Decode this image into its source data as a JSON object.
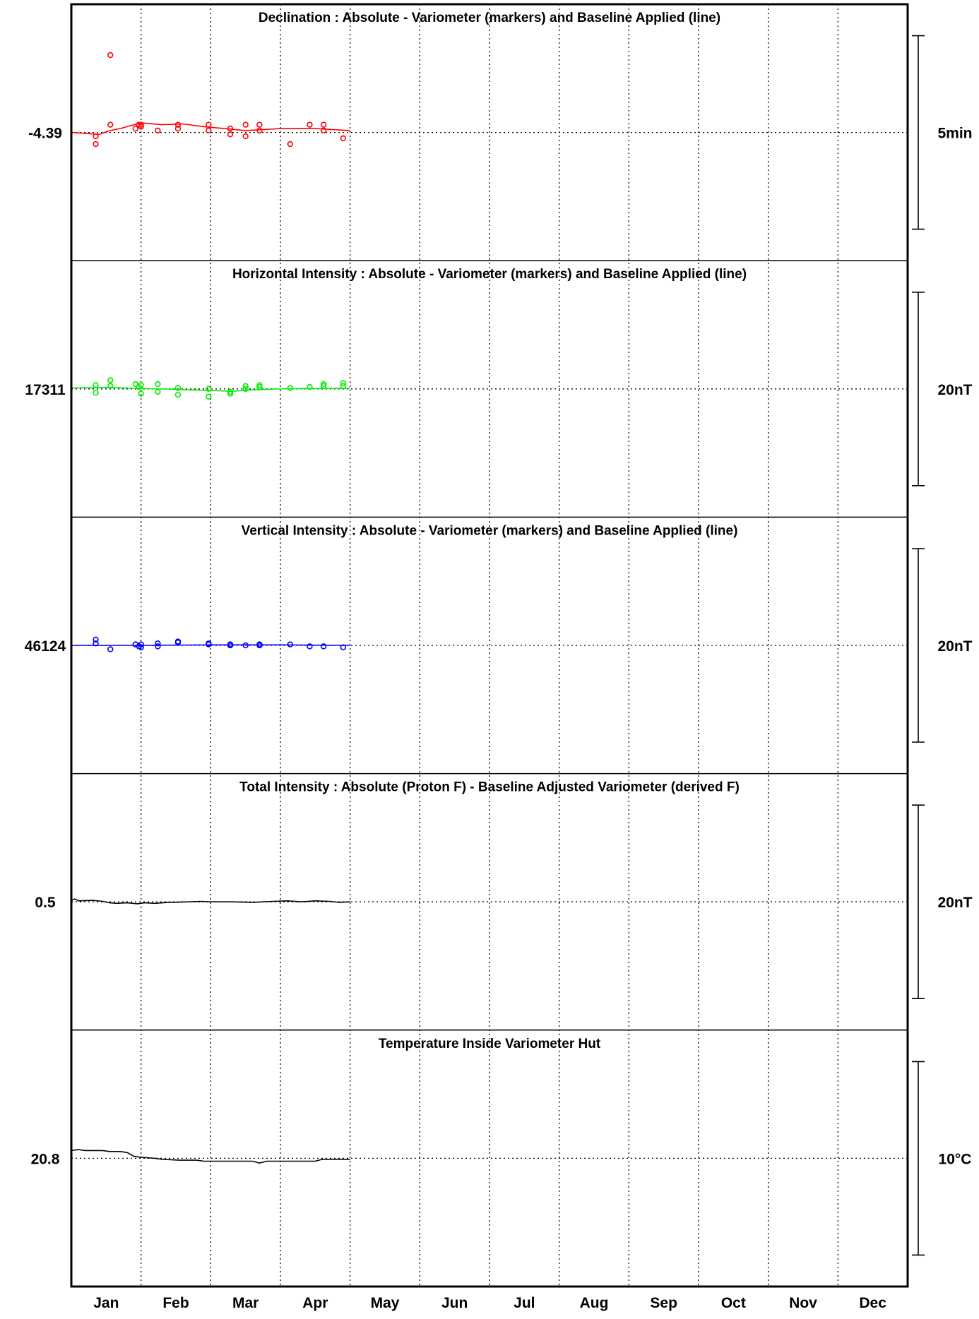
{
  "chart_data": {
    "type": "line",
    "months": [
      "Jan",
      "Feb",
      "Mar",
      "Apr",
      "May",
      "Jun",
      "Jul",
      "Aug",
      "Sep",
      "Oct",
      "Nov",
      "Dec"
    ],
    "grid": "dotted",
    "panels": [
      {
        "title": "Declination : Absolute - Variometer (markers) and Baseline Applied (line)",
        "center_label": "-4.39",
        "center_value": -4.39,
        "scale_label": "5min",
        "scale_span": 5,
        "color": "#ff0000",
        "markers": [
          [
            0.35,
            -0.1
          ],
          [
            0.35,
            -0.3
          ],
          [
            0.56,
            0.2
          ],
          [
            0.56,
            2.0
          ],
          [
            0.92,
            0.1
          ],
          [
            0.97,
            0.2
          ],
          [
            1.0,
            0.15
          ],
          [
            1.0,
            0.2
          ],
          [
            1.24,
            0.05
          ],
          [
            1.53,
            0.1
          ],
          [
            1.53,
            0.2
          ],
          [
            1.97,
            0.05
          ],
          [
            1.97,
            0.2
          ],
          [
            2.28,
            -0.05
          ],
          [
            2.28,
            0.1
          ],
          [
            2.5,
            -0.1
          ],
          [
            2.5,
            0.2
          ],
          [
            2.7,
            0.05
          ],
          [
            2.7,
            0.2
          ],
          [
            3.14,
            -0.3
          ],
          [
            3.42,
            0.2
          ],
          [
            3.62,
            0.05
          ],
          [
            3.62,
            0.2
          ],
          [
            3.9,
            -0.15
          ]
        ],
        "line": [
          [
            0.0,
            0.0
          ],
          [
            0.4,
            -0.05
          ],
          [
            0.55,
            0.05
          ],
          [
            0.7,
            0.1
          ],
          [
            0.9,
            0.2
          ],
          [
            1.0,
            0.25
          ],
          [
            1.3,
            0.2
          ],
          [
            1.6,
            0.22
          ],
          [
            1.9,
            0.15
          ],
          [
            2.2,
            0.1
          ],
          [
            2.5,
            0.05
          ],
          [
            3.0,
            0.1
          ],
          [
            3.5,
            0.1
          ],
          [
            4.0,
            0.05
          ]
        ]
      },
      {
        "title": "Horizontal Intensity : Absolute - Variometer (markers) and Baseline Applied (line)",
        "center_label": "17311",
        "center_value": 17311,
        "scale_label": "20nT",
        "scale_span": 20,
        "color": "#00ee00",
        "markers": [
          [
            0.35,
            0.4
          ],
          [
            0.35,
            -0.4
          ],
          [
            0.56,
            0.9
          ],
          [
            0.56,
            0.3
          ],
          [
            0.92,
            0.5
          ],
          [
            0.97,
            0.2
          ],
          [
            1.0,
            0.4
          ],
          [
            1.0,
            -0.5
          ],
          [
            1.24,
            0.5
          ],
          [
            1.24,
            -0.3
          ],
          [
            1.53,
            0.1
          ],
          [
            1.53,
            -0.6
          ],
          [
            1.97,
            0.0
          ],
          [
            1.97,
            -0.8
          ],
          [
            2.28,
            -0.3
          ],
          [
            2.28,
            -0.5
          ],
          [
            2.5,
            0.0
          ],
          [
            2.5,
            0.3
          ],
          [
            2.7,
            0.2
          ],
          [
            2.7,
            0.4
          ],
          [
            3.14,
            0.1
          ],
          [
            3.42,
            0.2
          ],
          [
            3.62,
            0.3
          ],
          [
            3.62,
            0.5
          ],
          [
            3.9,
            0.3
          ],
          [
            3.9,
            0.6
          ]
        ],
        "line": [
          [
            0.0,
            0.1
          ],
          [
            0.5,
            0.15
          ],
          [
            1.0,
            0.05
          ],
          [
            1.5,
            -0.05
          ],
          [
            2.0,
            -0.15
          ],
          [
            2.3,
            -0.25
          ],
          [
            2.6,
            -0.1
          ],
          [
            3.0,
            0.0
          ],
          [
            3.5,
            0.05
          ],
          [
            4.0,
            0.05
          ]
        ]
      },
      {
        "title": "Vertical Intensity : Absolute - Variometer (markers) and Baseline Applied (line)",
        "center_label": "46124",
        "center_value": 46124,
        "scale_label": "20nT",
        "scale_span": 20,
        "color": "#0000ff",
        "markers": [
          [
            0.35,
            0.6
          ],
          [
            0.35,
            0.2
          ],
          [
            0.56,
            -0.4
          ],
          [
            0.92,
            0.1
          ],
          [
            0.97,
            -0.1
          ],
          [
            1.0,
            0.1
          ],
          [
            1.0,
            -0.2
          ],
          [
            1.24,
            0.2
          ],
          [
            1.24,
            -0.1
          ],
          [
            1.53,
            0.3
          ],
          [
            1.53,
            0.4
          ],
          [
            1.97,
            0.2
          ],
          [
            1.97,
            0.1
          ],
          [
            2.28,
            0.1
          ],
          [
            2.28,
            0.0
          ],
          [
            2.5,
            0.0
          ],
          [
            2.7,
            0.0
          ],
          [
            2.7,
            0.1
          ],
          [
            3.14,
            0.1
          ],
          [
            3.42,
            -0.1
          ],
          [
            3.62,
            -0.1
          ],
          [
            3.9,
            -0.2
          ]
        ],
        "line": [
          [
            0.0,
            0.0
          ],
          [
            1.0,
            0.0
          ],
          [
            2.0,
            0.05
          ],
          [
            3.0,
            0.05
          ],
          [
            4.0,
            0.0
          ]
        ]
      },
      {
        "title": "Total Intensity : Absolute (Proton F) - Baseline Adjusted Variometer (derived F)",
        "center_label": "0.5",
        "center_value": 0.5,
        "scale_label": "20nT",
        "scale_span": 20,
        "color": "#000000",
        "markers": [],
        "line": [
          [
            0.0,
            0.15
          ],
          [
            0.05,
            0.3
          ],
          [
            0.1,
            0.1
          ],
          [
            0.3,
            0.15
          ],
          [
            0.45,
            0.05
          ],
          [
            0.55,
            -0.1
          ],
          [
            0.65,
            -0.15
          ],
          [
            0.8,
            -0.1
          ],
          [
            0.95,
            -0.2
          ],
          [
            1.05,
            -0.1
          ],
          [
            1.2,
            -0.15
          ],
          [
            1.4,
            -0.05
          ],
          [
            1.7,
            0.0
          ],
          [
            1.85,
            0.05
          ],
          [
            2.0,
            0.0
          ],
          [
            2.3,
            0.0
          ],
          [
            2.6,
            -0.05
          ],
          [
            2.9,
            0.05
          ],
          [
            3.1,
            0.1
          ],
          [
            3.3,
            0.0
          ],
          [
            3.5,
            0.1
          ],
          [
            3.7,
            0.05
          ],
          [
            3.85,
            -0.05
          ],
          [
            4.0,
            0.0
          ]
        ]
      },
      {
        "title": "Temperature Inside Variometer Hut",
        "center_label": "20.8",
        "center_value": 20.8,
        "scale_label": "10°C",
        "scale_span": 10,
        "color": "#000000",
        "markers": [],
        "line": [
          [
            0.0,
            0.4
          ],
          [
            0.1,
            0.45
          ],
          [
            0.2,
            0.4
          ],
          [
            0.45,
            0.4
          ],
          [
            0.55,
            0.35
          ],
          [
            0.7,
            0.35
          ],
          [
            0.8,
            0.3
          ],
          [
            0.9,
            0.1
          ],
          [
            1.0,
            0.05
          ],
          [
            1.2,
            0.0
          ],
          [
            1.3,
            -0.05
          ],
          [
            1.55,
            -0.1
          ],
          [
            1.8,
            -0.1
          ],
          [
            1.9,
            -0.15
          ],
          [
            2.3,
            -0.15
          ],
          [
            2.6,
            -0.15
          ],
          [
            2.7,
            -0.25
          ],
          [
            2.8,
            -0.15
          ],
          [
            3.0,
            -0.15
          ],
          [
            3.3,
            -0.15
          ],
          [
            3.5,
            -0.15
          ],
          [
            3.6,
            -0.05
          ],
          [
            3.8,
            -0.05
          ],
          [
            4.0,
            -0.05
          ]
        ]
      }
    ]
  }
}
